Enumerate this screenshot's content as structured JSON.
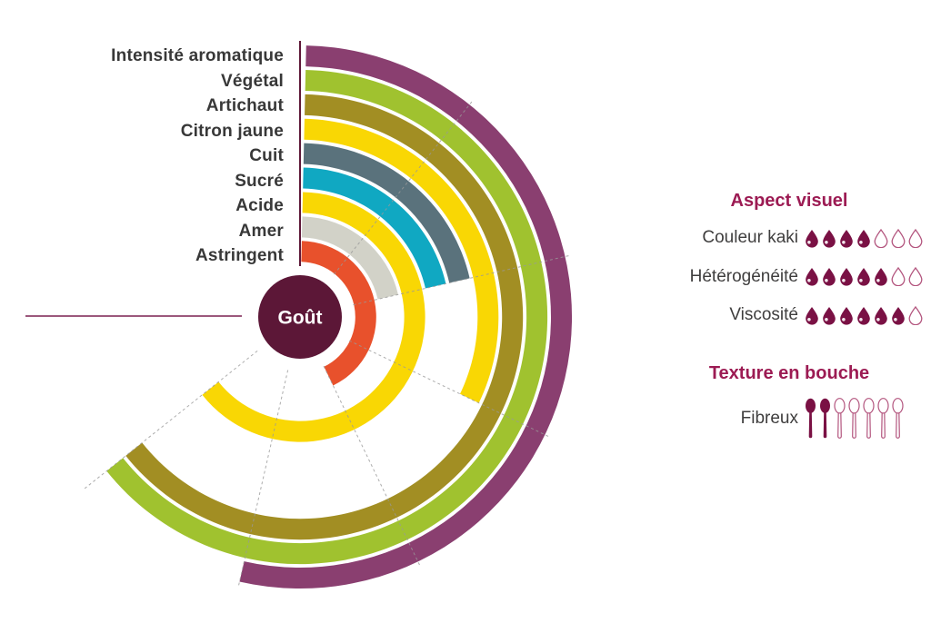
{
  "chart_data": {
    "type": "bar",
    "subtype": "radial-concentric-arcs",
    "title": "Goût",
    "categories": [
      "Intensité aromatique",
      "Végétal",
      "Artichaut",
      "Citron jaune",
      "Cuit",
      "Sucré",
      "Acide",
      "Amer",
      "Astringent"
    ],
    "values": [
      5,
      6,
      6,
      3,
      2,
      2,
      6,
      2,
      4
    ],
    "scale": {
      "min": 0,
      "max": 7,
      "degrees_per_unit": 38.5714,
      "start_angle_deg": 0,
      "full_scale_deg": 270,
      "direction": "clockwise-from-top"
    },
    "ring_colors": [
      "#8A3F70",
      "#A0C22F",
      "#A28E23",
      "#F9D704",
      "#5A727C",
      "#10A8C2",
      "#F9D704",
      "#D2D2C8",
      "#E8512C"
    ],
    "gridlines_at_units": [
      1,
      2,
      3,
      4,
      5,
      6
    ],
    "grid_on": true,
    "legend_position": "labels-left-of-rings",
    "icon_ratings": [
      {
        "section": "Aspect visuel",
        "icon": "droplet",
        "items": [
          {
            "label": "Couleur kaki",
            "value": 4,
            "max": 7
          },
          {
            "label": "Hétérogénéité",
            "value": 5,
            "max": 7
          },
          {
            "label": "Viscosité",
            "value": 6,
            "max": 7
          }
        ]
      },
      {
        "section": "Texture en bouche",
        "icon": "spoon",
        "items": [
          {
            "label": "Fibreux",
            "value": 2,
            "max": 7
          }
        ]
      }
    ]
  },
  "colors": {
    "center_circle": "#5C1737",
    "axis_line": "#5E1838",
    "pointer_line": "#7B2150",
    "section_heading": "#9C1B53",
    "icon_filled": "#7A1144",
    "icon_outline": "#B3557E",
    "label_text": "#383838",
    "gridline": "#999999"
  }
}
